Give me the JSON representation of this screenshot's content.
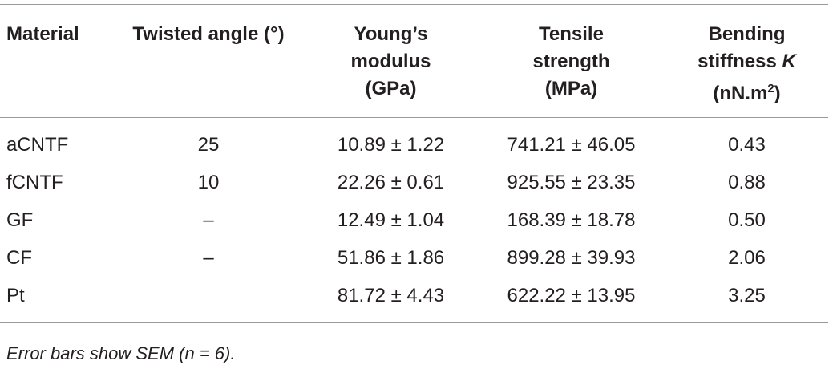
{
  "table": {
    "header": [
      [
        "Material"
      ],
      [
        "Twisted angle (°)"
      ],
      [
        "Young’s",
        "modulus",
        "(GPa)"
      ],
      [
        "Tensile",
        "strength",
        "(MPa)"
      ],
      [
        "Bending",
        "stiffness",
        "K",
        "(nN.m",
        "2",
        ")"
      ]
    ],
    "rows": [
      [
        "aCNTF",
        "25",
        "10.89 ± 1.22",
        "741.21 ± 46.05",
        "0.43"
      ],
      [
        "fCNTF",
        "10",
        "22.26 ± 0.61",
        "925.55 ± 23.35",
        "0.88"
      ],
      [
        "GF",
        "–",
        "12.49 ± 1.04",
        "168.39 ± 18.78",
        "0.50"
      ],
      [
        "CF",
        "–",
        "51.86 ± 1.86",
        "899.28 ± 39.93",
        "2.06"
      ],
      [
        "Pt",
        null,
        "81.72 ± 4.43",
        "622.22 ± 13.95",
        "3.25"
      ]
    ],
    "footnote": "Error bars show SEM (n = 6)."
  }
}
